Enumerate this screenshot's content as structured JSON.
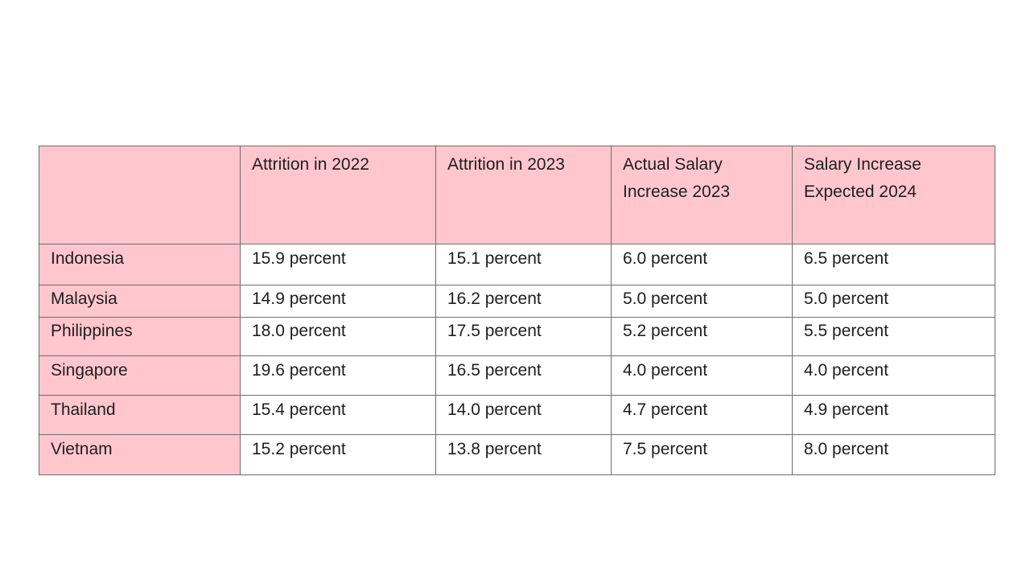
{
  "table": {
    "headers": [
      "",
      "Attrition in 2022",
      "Attrition in 2023",
      "Actual Salary Increase 2023",
      "Salary Increase Expected 2024"
    ],
    "rows": [
      {
        "country": "Indonesia",
        "cells": [
          "15.9 percent",
          "15.1 percent",
          "6.0 percent",
          "6.5 percent"
        ]
      },
      {
        "country": "Malaysia",
        "cells": [
          "14.9 percent",
          "16.2 percent",
          "5.0 percent",
          "5.0 percent"
        ]
      },
      {
        "country": "Philippines",
        "cells": [
          "18.0 percent",
          "17.5 percent",
          "5.2 percent",
          "5.5 percent"
        ]
      },
      {
        "country": "Singapore",
        "cells": [
          "19.6 percent",
          "16.5 percent",
          "4.0 percent",
          "4.0 percent"
        ]
      },
      {
        "country": "Thailand",
        "cells": [
          "15.4 percent",
          "14.0 percent",
          "4.7 percent",
          "4.9 percent"
        ]
      },
      {
        "country": "Vietnam",
        "cells": [
          "15.2 percent",
          "13.8 percent",
          "7.5 percent",
          "8.0 percent"
        ]
      }
    ]
  },
  "colors": {
    "header_fill": "#ffc7cd",
    "border": "#6e6e6e",
    "text": "#1e1e1e",
    "background": "#ffffff"
  }
}
